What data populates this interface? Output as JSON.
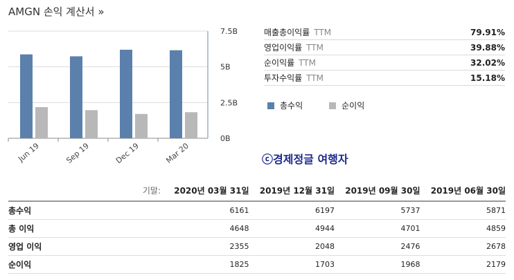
{
  "title": "AMGN 손익 계산서 »",
  "ratios": [
    {
      "label": "매출총이익률",
      "ttm": "TTM",
      "value": "79.91%"
    },
    {
      "label": "영업이익률",
      "ttm": "TTM",
      "value": "39.88%"
    },
    {
      "label": "순이익률",
      "ttm": "TTM",
      "value": "32.02%"
    },
    {
      "label": "투자수익률",
      "ttm": "TTM",
      "value": "15.18%"
    }
  ],
  "watermark": "ⓒ경제정글 여행자",
  "chart_data": {
    "type": "bar",
    "categories": [
      "Jun 19",
      "Sep 19",
      "Dec 19",
      "Mar 20"
    ],
    "series": [
      {
        "name": "총수익",
        "color": "#5b80ac",
        "values": [
          5.871,
          5.737,
          6.197,
          6.161
        ]
      },
      {
        "name": "순이익",
        "color": "#b8b8b8",
        "values": [
          2.179,
          1.968,
          1.703,
          1.825
        ]
      }
    ],
    "y_ticks": [
      "0B",
      "2.5B",
      "5B",
      "7.5B"
    ],
    "ylim": [
      0,
      7.5
    ],
    "grid": true,
    "legend": "right"
  },
  "table": {
    "header_label": "기말:",
    "columns": [
      "2020년 03월 31일",
      "2019년 12월 31일",
      "2019년 09월 30일",
      "2019년 06월 30일"
    ],
    "rows": [
      {
        "label": "총수익",
        "values": [
          "6161",
          "6197",
          "5737",
          "5871"
        ]
      },
      {
        "label": "총 이익",
        "values": [
          "4648",
          "4944",
          "4701",
          "4859"
        ]
      },
      {
        "label": "영업 이익",
        "values": [
          "2355",
          "2048",
          "2476",
          "2678"
        ]
      },
      {
        "label": "순이익",
        "values": [
          "1825",
          "1703",
          "1968",
          "2179"
        ]
      }
    ]
  }
}
